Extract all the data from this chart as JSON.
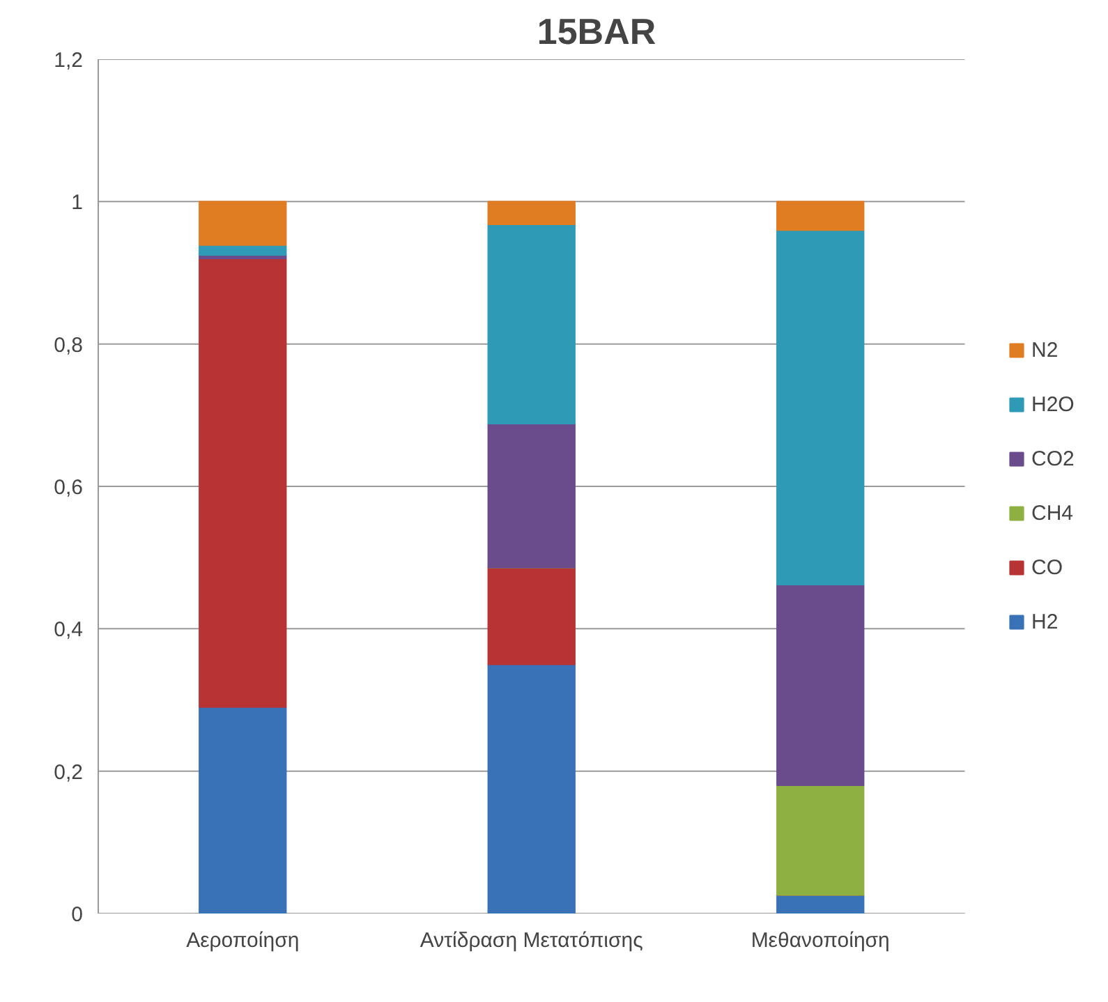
{
  "chart_data": {
    "type": "bar",
    "title": "15BAR",
    "stacked": true,
    "categories": [
      "Αεροποίηση",
      "Αντίδραση Μετατόπισης",
      "Μεθανοποίηση"
    ],
    "series": [
      {
        "name": "H2",
        "color": "#3a72b8",
        "values": [
          0.29,
          0.35,
          0.026
        ]
      },
      {
        "name": "CO",
        "color": "#b83434",
        "values": [
          0.63,
          0.136,
          0
        ]
      },
      {
        "name": "CH4",
        "color": "#8db040",
        "values": [
          0,
          0,
          0.154
        ]
      },
      {
        "name": "CO2",
        "color": "#6a4c8c",
        "values": [
          0.005,
          0.202,
          0.282
        ]
      },
      {
        "name": "H2O",
        "color": "#2f9ab5",
        "values": [
          0.014,
          0.28,
          0.498
        ]
      },
      {
        "name": "N2",
        "color": "#e07c22",
        "values": [
          0.061,
          0.032,
          0.04
        ]
      }
    ],
    "ylim": [
      0,
      1.2
    ],
    "yticks": [
      {
        "value": 0,
        "label": "0"
      },
      {
        "value": 0.2,
        "label": "0,2"
      },
      {
        "value": 0.4,
        "label": "0,4"
      },
      {
        "value": 0.6,
        "label": "0,6"
      },
      {
        "value": 0.8,
        "label": "0,8"
      },
      {
        "value": 1,
        "label": "1"
      },
      {
        "value": 1.2,
        "label": "1,2"
      }
    ],
    "grid": "y",
    "legend": "right"
  }
}
